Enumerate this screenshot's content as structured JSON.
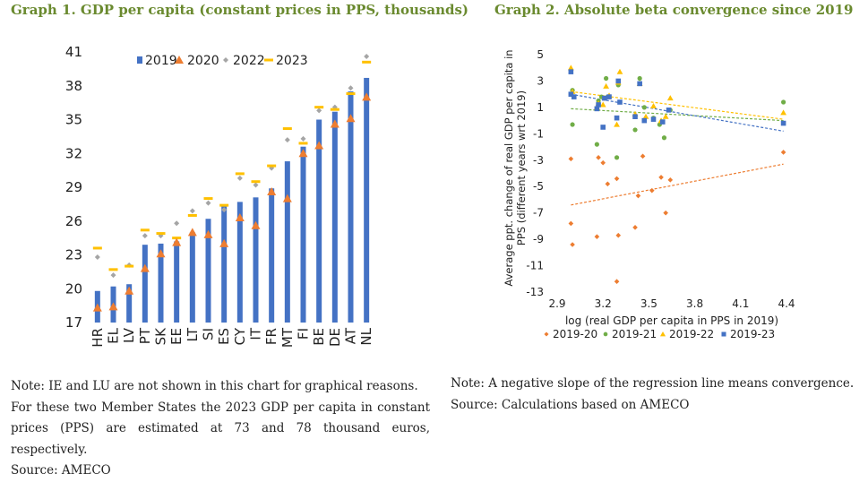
{
  "graph1": {
    "title": "Graph 1. GDP per capita (constant prices in PPS, thousands)",
    "note_lines": [
      "Note: IE and LU are not shown in this chart for graphical reasons.",
      "For these two Member States the 2023 GDP per capita in constant prices (PPS) are estimated at 73 and 78 thousand euros, respectively."
    ],
    "source": "Source: AMECO"
  },
  "graph2": {
    "title": "Graph 2. Absolute beta convergence since 2019",
    "note": "Note: A negative slope of the regression line means convergence.",
    "source": "Source: Calculations based on AMECO"
  },
  "colors": {
    "title": "#6a8a2f",
    "s2019": "#4472c4",
    "s2020": "#ed7d31",
    "s2022": "#a5a5a5",
    "s2023": "#ffc000",
    "green": "#70ad47"
  },
  "chart_data": [
    {
      "type": "bar",
      "title": "Graph 1. GDP per capita (constant prices in PPS, thousands)",
      "categories": [
        "HR",
        "EL",
        "LV",
        "PT",
        "SK",
        "EE",
        "LT",
        "SI",
        "ES",
        "CY",
        "IT",
        "FR",
        "MT",
        "FI",
        "BE",
        "DE",
        "AT",
        "NL"
      ],
      "ylim": [
        17,
        41
      ],
      "yticks": [
        17,
        20,
        23,
        26,
        29,
        32,
        35,
        38,
        41
      ],
      "legend_position": "top",
      "series": [
        {
          "name": "2019",
          "mark": "bar",
          "values": [
            19.8,
            20.2,
            20.4,
            23.9,
            24.0,
            24.2,
            25.0,
            26.2,
            27.3,
            27.7,
            28.1,
            28.9,
            31.3,
            32.6,
            35.0,
            35.7,
            37.5,
            38.7
          ]
        },
        {
          "name": "2020",
          "mark": "triangle",
          "values": [
            18.3,
            18.4,
            19.8,
            21.8,
            23.1,
            24.1,
            25.0,
            24.8,
            24.0,
            26.3,
            25.6,
            28.6,
            28.0,
            32.0,
            32.7,
            34.6,
            35.1,
            37.0
          ]
        },
        {
          "name": "2022",
          "mark": "diamond",
          "values": [
            22.8,
            21.2,
            22.1,
            24.7,
            24.7,
            25.8,
            26.9,
            27.6,
            27.0,
            29.8,
            29.2,
            30.7,
            33.2,
            33.3,
            35.8,
            36.1,
            37.8,
            40.6
          ]
        },
        {
          "name": "2023",
          "mark": "dash",
          "values": [
            23.6,
            21.7,
            22.0,
            25.2,
            24.9,
            24.5,
            26.5,
            28.0,
            27.4,
            30.2,
            29.5,
            30.9,
            34.2,
            32.9,
            36.1,
            35.9,
            37.3,
            40.1
          ]
        }
      ]
    },
    {
      "type": "scatter",
      "title": "Graph 2. Absolute beta convergence since 2019",
      "xlabel": "log (real GDP per capita in PPS in 2019)",
      "ylabel": "Average ppt. change of real GDP per capita in PPS (different years wrt 2019)",
      "xlim": [
        2.9,
        4.4
      ],
      "ylim": [
        -13,
        5
      ],
      "xticks": [
        2.9,
        3.2,
        3.5,
        3.8,
        4.1,
        4.4
      ],
      "yticks": [
        -13,
        -11,
        -9,
        -7,
        -5,
        -3,
        -1,
        1,
        3,
        5
      ],
      "legend_position": "bottom",
      "series": [
        {
          "name": "2019-20",
          "mark": "diamond",
          "points": [
            [
              2.99,
              -2.9
            ],
            [
              2.99,
              -7.8
            ],
            [
              3.0,
              -9.4
            ],
            [
              3.16,
              -8.8
            ],
            [
              3.17,
              -2.8
            ],
            [
              3.2,
              -3.2
            ],
            [
              3.23,
              -4.8
            ],
            [
              3.29,
              -12.2
            ],
            [
              3.29,
              -4.4
            ],
            [
              3.3,
              -8.7
            ],
            [
              3.41,
              -8.1
            ],
            [
              3.43,
              -5.7
            ],
            [
              3.46,
              -2.7
            ],
            [
              3.52,
              -5.3
            ],
            [
              3.58,
              -4.3
            ],
            [
              3.61,
              -7.0
            ],
            [
              3.64,
              -4.5
            ],
            [
              4.38,
              -2.4
            ]
          ]
        },
        {
          "name": "2019-21",
          "mark": "circle",
          "points": [
            [
              2.99,
              2.0
            ],
            [
              3.0,
              2.3
            ],
            [
              3.0,
              -0.3
            ],
            [
              3.16,
              -1.8
            ],
            [
              3.17,
              1.5
            ],
            [
              3.19,
              1.8
            ],
            [
              3.22,
              3.2
            ],
            [
              3.23,
              1.8
            ],
            [
              3.29,
              -2.8
            ],
            [
              3.3,
              2.7
            ],
            [
              3.41,
              -0.7
            ],
            [
              3.44,
              3.2
            ],
            [
              3.47,
              1.0
            ],
            [
              3.53,
              0.2
            ],
            [
              3.57,
              -0.3
            ],
            [
              3.6,
              -1.3
            ],
            [
              3.64,
              0.8
            ],
            [
              4.38,
              1.4
            ]
          ]
        },
        {
          "name": "2019-22",
          "mark": "triangle",
          "points": [
            [
              2.99,
              4.0
            ],
            [
              3.0,
              2.2
            ],
            [
              3.16,
              1.0
            ],
            [
              3.17,
              1.3
            ],
            [
              3.2,
              1.2
            ],
            [
              3.22,
              2.6
            ],
            [
              3.24,
              1.9
            ],
            [
              3.29,
              -0.3
            ],
            [
              3.3,
              2.9
            ],
            [
              3.31,
              3.7
            ],
            [
              3.41,
              0.5
            ],
            [
              3.44,
              2.8
            ],
            [
              3.48,
              0.3
            ],
            [
              3.53,
              1.1
            ],
            [
              3.58,
              0.0
            ],
            [
              3.61,
              0.3
            ],
            [
              3.64,
              1.7
            ],
            [
              4.38,
              0.6
            ]
          ]
        },
        {
          "name": "2019-23",
          "mark": "square",
          "points": [
            [
              2.99,
              3.7
            ],
            [
              2.99,
              2.0
            ],
            [
              3.01,
              1.8
            ],
            [
              3.16,
              0.9
            ],
            [
              3.17,
              1.2
            ],
            [
              3.2,
              -0.5
            ],
            [
              3.21,
              1.7
            ],
            [
              3.24,
              1.8
            ],
            [
              3.29,
              0.2
            ],
            [
              3.3,
              3.0
            ],
            [
              3.31,
              1.4
            ],
            [
              3.41,
              0.3
            ],
            [
              3.44,
              2.8
            ],
            [
              3.47,
              0.0
            ],
            [
              3.53,
              0.1
            ],
            [
              3.59,
              -0.1
            ],
            [
              3.63,
              0.8
            ],
            [
              4.38,
              -0.2
            ]
          ]
        }
      ],
      "trendlines": [
        {
          "series": "2019-20",
          "from": [
            2.99,
            -6.4
          ],
          "to": [
            4.38,
            -3.3
          ]
        },
        {
          "series": "2019-21",
          "from": [
            2.99,
            0.9
          ],
          "to": [
            4.38,
            0.0
          ]
        },
        {
          "series": "2019-22",
          "from": [
            2.99,
            2.2
          ],
          "to": [
            4.38,
            0.1
          ]
        },
        {
          "series": "2019-23",
          "from": [
            2.99,
            2.0
          ],
          "to": [
            4.38,
            -0.8
          ]
        }
      ]
    }
  ]
}
